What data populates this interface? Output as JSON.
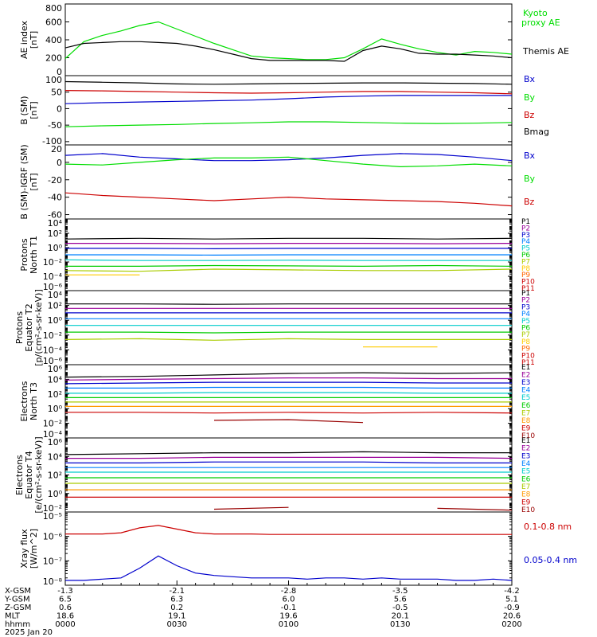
{
  "chart_data": [
    {
      "type": "line",
      "ylabel_lines": [
        "AE index",
        "[nT]"
      ],
      "ylim": [
        0,
        800
      ],
      "yticks": [
        0,
        200,
        400,
        600,
        800
      ],
      "ytick_labels": [
        "0",
        "200",
        "400",
        "600",
        "800"
      ],
      "x": [
        0,
        5,
        10,
        15,
        20,
        25,
        30,
        35,
        40,
        45,
        50,
        55,
        60,
        65,
        70,
        75,
        80,
        85,
        90,
        95,
        100,
        105,
        110,
        115,
        120
      ],
      "series": [
        {
          "name": "Kyoto proxy AE",
          "color": "#00dd00",
          "values": [
            190,
            380,
            450,
            500,
            560,
            600,
            520,
            440,
            360,
            290,
            220,
            200,
            190,
            180,
            180,
            200,
            300,
            410,
            350,
            300,
            260,
            230,
            270,
            260,
            240
          ]
        },
        {
          "name": "Themis AE",
          "color": "#000000",
          "values": [
            310,
            360,
            370,
            380,
            380,
            370,
            360,
            330,
            290,
            240,
            190,
            170,
            170,
            170,
            170,
            160,
            280,
            330,
            300,
            250,
            240,
            240,
            230,
            220,
            200
          ]
        }
      ]
    },
    {
      "type": "line",
      "ylabel_lines": [
        "B (SM)",
        "[nT]"
      ],
      "ylim": [
        -110,
        100
      ],
      "yticks": [
        -100,
        -50,
        0,
        50,
        100
      ],
      "ytick_labels": [
        "-100",
        "-50",
        "0",
        "50",
        "100"
      ],
      "x": [
        0,
        10,
        20,
        30,
        40,
        50,
        60,
        70,
        80,
        90,
        100,
        110,
        120
      ],
      "series": [
        {
          "name": "Bx",
          "color": "#0000cc",
          "values": [
            15,
            18,
            20,
            22,
            24,
            26,
            30,
            35,
            38,
            40,
            40,
            40,
            40
          ]
        },
        {
          "name": "By",
          "color": "#00dd00",
          "values": [
            -55,
            -52,
            -50,
            -48,
            -45,
            -43,
            -40,
            -40,
            -42,
            -44,
            -45,
            -44,
            -42
          ]
        },
        {
          "name": "Bz",
          "color": "#cc0000",
          "values": [
            55,
            54,
            52,
            50,
            48,
            47,
            48,
            50,
            52,
            52,
            50,
            48,
            45
          ]
        },
        {
          "name": "Bmag",
          "color": "#000000",
          "values": [
            82,
            80,
            78,
            75,
            74,
            75,
            76,
            77,
            78,
            78,
            77,
            76,
            74
          ]
        }
      ]
    },
    {
      "type": "line",
      "ylabel_lines": [
        "B (SM)-IGRF (SM)",
        "[nT]"
      ],
      "ylim": [
        -65,
        20
      ],
      "yticks": [
        -60,
        -40,
        -20,
        0,
        20
      ],
      "ytick_labels": [
        "-60",
        "-40",
        "-20",
        "0",
        "20"
      ],
      "x": [
        0,
        10,
        20,
        30,
        40,
        50,
        60,
        70,
        80,
        90,
        100,
        110,
        120
      ],
      "series": [
        {
          "name": "Bx",
          "color": "#0000cc",
          "values": [
            8,
            10,
            6,
            4,
            2,
            2,
            3,
            5,
            8,
            10,
            9,
            6,
            2
          ]
        },
        {
          "name": "By",
          "color": "#00dd00",
          "values": [
            -2,
            -3,
            0,
            3,
            5,
            5,
            6,
            2,
            -2,
            -5,
            -4,
            -2,
            -4
          ]
        },
        {
          "name": "Bz",
          "color": "#cc0000",
          "values": [
            -35,
            -38,
            -40,
            -42,
            -44,
            -42,
            -40,
            -42,
            -43,
            -44,
            -45,
            -47,
            -50
          ]
        }
      ]
    },
    {
      "type": "line",
      "ylabel_lines": [
        "Protons",
        "North T1"
      ],
      "log": true,
      "ylim_exp": [
        -6,
        4
      ],
      "yticks_exp": [
        -6,
        -4,
        -2,
        0,
        2,
        4
      ],
      "series": [
        {
          "name": "P1",
          "color": "#000000",
          "log_values": [
            1.2,
            1.3,
            1.2,
            1.3,
            1.3,
            1.2,
            1.3
          ]
        },
        {
          "name": "P2",
          "color": "#990099",
          "log_values": [
            0.6,
            0.6,
            0.55,
            0.6,
            0.6,
            0.55,
            0.6
          ]
        },
        {
          "name": "P3",
          "color": "#0000cc",
          "log_values": [
            -0.1,
            -0.1,
            -0.15,
            -0.1,
            -0.1,
            -0.1,
            -0.1
          ]
        },
        {
          "name": "P4",
          "color": "#0080ff",
          "log_values": [
            -1.0,
            -1.0,
            -1.05,
            -1.0,
            -1.0,
            -1.0,
            -1.0
          ]
        },
        {
          "name": "P5",
          "color": "#00cccc",
          "log_values": [
            -1.7,
            -1.8,
            -1.8,
            -1.75,
            -1.8,
            -1.8,
            -1.8
          ]
        },
        {
          "name": "P6",
          "color": "#00cc00",
          "log_values": [
            -2.6,
            -2.6,
            -2.5,
            -2.55,
            -2.6,
            -2.5,
            -2.6
          ]
        },
        {
          "name": "P7",
          "color": "#aacc00",
          "log_values": [
            -3.2,
            -3.3,
            -3.0,
            -3.1,
            -3.2,
            -3.2,
            -3.0
          ]
        },
        {
          "name": "P8",
          "color": "#ffcc00",
          "log_values": [
            -3.8,
            -3.8,
            null,
            -3.8,
            null,
            null,
            -3.6
          ]
        }
      ],
      "legend_extra": [
        {
          "name": "P9",
          "color": "#ff6600"
        },
        {
          "name": "P10",
          "color": "#cc0000"
        },
        {
          "name": "P11",
          "color": "#cc0000"
        }
      ]
    },
    {
      "type": "line",
      "ylabel_lines": [
        "Protons",
        "Equator T2",
        "[p/(cm²-s-sr-keV)]"
      ],
      "log": true,
      "ylim_exp": [
        -6,
        4
      ],
      "yticks_exp": [
        -6,
        -4,
        -2,
        0,
        2,
        4
      ],
      "series": [
        {
          "name": "P1",
          "color": "#000000",
          "log_values": [
            2.2,
            2.2,
            2.15,
            2.2,
            2.2,
            2.2,
            2.2
          ]
        },
        {
          "name": "P2",
          "color": "#990099",
          "log_values": [
            1.6,
            1.6,
            1.6,
            1.6,
            1.6,
            1.6,
            1.6
          ]
        },
        {
          "name": "P3",
          "color": "#0000cc",
          "log_values": [
            1.0,
            1.0,
            1.0,
            1.0,
            1.0,
            1.0,
            1.0
          ]
        },
        {
          "name": "P4",
          "color": "#0080ff",
          "log_values": [
            0.2,
            0.2,
            0.2,
            0.2,
            0.2,
            0.2,
            0.2
          ]
        },
        {
          "name": "P5",
          "color": "#00cccc",
          "log_values": [
            -0.7,
            -0.7,
            -0.7,
            -0.7,
            -0.7,
            -0.7,
            -0.7
          ]
        },
        {
          "name": "P6",
          "color": "#00cc00",
          "log_values": [
            -1.6,
            -1.6,
            -1.7,
            -1.6,
            -1.6,
            -1.6,
            -1.6
          ]
        },
        {
          "name": "P7",
          "color": "#aacc00",
          "log_values": [
            -2.6,
            -2.5,
            -2.7,
            -2.5,
            -2.6,
            -2.6,
            -2.6
          ]
        },
        {
          "name": "P8",
          "color": "#ffcc00",
          "log_values": [
            -3.5,
            null,
            -3.6,
            null,
            -3.6,
            -3.6,
            null
          ]
        }
      ],
      "legend_extra": [
        {
          "name": "P9",
          "color": "#ff6600"
        },
        {
          "name": "P10",
          "color": "#cc0000"
        },
        {
          "name": "P11",
          "color": "#cc0000"
        }
      ]
    },
    {
      "type": "line",
      "ylabel_lines": [
        "Electrons",
        "North T3"
      ],
      "log": true,
      "ylim_exp": [
        -4,
        6
      ],
      "yticks_exp": [
        -4,
        -2,
        0,
        2,
        4,
        6
      ],
      "series": [
        {
          "name": "E1",
          "color": "#000000",
          "log_values": [
            4.3,
            4.4,
            4.6,
            4.8,
            4.9,
            4.8,
            4.9
          ]
        },
        {
          "name": "E2",
          "color": "#990099",
          "log_values": [
            3.9,
            4.0,
            4.1,
            4.2,
            4.2,
            4.1,
            4.1
          ]
        },
        {
          "name": "E3",
          "color": "#0000cc",
          "log_values": [
            3.4,
            3.5,
            3.6,
            3.6,
            3.6,
            3.5,
            3.5
          ]
        },
        {
          "name": "E4",
          "color": "#0080ff",
          "log_values": [
            2.8,
            2.8,
            2.9,
            2.9,
            2.9,
            2.8,
            2.8
          ]
        },
        {
          "name": "E5",
          "color": "#00cccc",
          "log_values": [
            2.1,
            2.1,
            2.2,
            2.2,
            2.2,
            2.1,
            2.1
          ]
        },
        {
          "name": "E6",
          "color": "#00cc00",
          "log_values": [
            1.5,
            1.5,
            1.5,
            1.5,
            1.5,
            1.5,
            1.5
          ]
        },
        {
          "name": "E7",
          "color": "#aacc00",
          "log_values": [
            0.9,
            0.9,
            0.9,
            0.9,
            0.9,
            0.9,
            0.9
          ]
        },
        {
          "name": "E8",
          "color": "#ff9900",
          "log_values": [
            0.3,
            0.3,
            0.3,
            0.3,
            0.3,
            0.3,
            0.3
          ]
        },
        {
          "name": "E9",
          "color": "#cc0000",
          "log_values": [
            -0.5,
            -0.5,
            -0.6,
            -0.5,
            -0.6,
            -0.5,
            -0.6
          ]
        },
        {
          "name": "E10",
          "color": "#990000",
          "log_values": [
            -1.5,
            null,
            -1.6,
            -1.5,
            -1.9,
            null,
            -1.8
          ]
        }
      ]
    },
    {
      "type": "line",
      "ylabel_lines": [
        "Electrons",
        "Equator T4",
        "[e/(cm²-s-sr-keV)]"
      ],
      "log": true,
      "ylim_exp": [
        -2,
        6
      ],
      "yticks_exp": [
        -2,
        0,
        2,
        4,
        6
      ],
      "series": [
        {
          "name": "E1",
          "color": "#000000",
          "log_values": [
            4.2,
            4.3,
            4.4,
            4.4,
            4.5,
            4.4,
            4.4
          ]
        },
        {
          "name": "E2",
          "color": "#990099",
          "log_values": [
            3.8,
            3.8,
            3.9,
            3.9,
            3.9,
            3.9,
            3.8
          ]
        },
        {
          "name": "E3",
          "color": "#0000cc",
          "log_values": [
            3.3,
            3.3,
            3.4,
            3.4,
            3.4,
            3.3,
            3.3
          ]
        },
        {
          "name": "E4",
          "color": "#0080ff",
          "log_values": [
            2.8,
            2.8,
            2.8,
            2.8,
            2.8,
            2.8,
            2.8
          ]
        },
        {
          "name": "E5",
          "color": "#00cccc",
          "log_values": [
            2.3,
            2.3,
            2.3,
            2.3,
            2.3,
            2.3,
            2.3
          ]
        },
        {
          "name": "E6",
          "color": "#00cc00",
          "log_values": [
            1.7,
            1.7,
            1.7,
            1.7,
            1.7,
            1.7,
            1.7
          ]
        },
        {
          "name": "E7",
          "color": "#aacc00",
          "log_values": [
            1.1,
            1.1,
            1.1,
            1.1,
            1.1,
            1.1,
            1.1
          ]
        },
        {
          "name": "E8",
          "color": "#ff9900",
          "log_values": [
            0.4,
            0.4,
            0.4,
            0.4,
            0.4,
            0.4,
            0.4
          ]
        },
        {
          "name": "E9",
          "color": "#cc0000",
          "log_values": [
            -0.4,
            -0.4,
            -0.4,
            -0.4,
            -0.4,
            -0.4,
            -0.4
          ]
        },
        {
          "name": "E10",
          "color": "#990000",
          "log_values": [
            -1.8,
            null,
            -1.7,
            -1.5,
            null,
            -1.6,
            -1.8
          ]
        }
      ]
    },
    {
      "type": "line",
      "ylabel_lines": [
        "Xray flux",
        "[W/m^2]"
      ],
      "log": true,
      "ylim_exp": [
        -8,
        -5
      ],
      "yticks_exp": [
        -8,
        -7,
        -6,
        -5
      ],
      "x": [
        0,
        5,
        10,
        15,
        20,
        25,
        30,
        35,
        40,
        45,
        50,
        55,
        60,
        65,
        70,
        75,
        80,
        85,
        90,
        95,
        100,
        105,
        110,
        115,
        120
      ],
      "series": [
        {
          "name": "0.1-0.8 nm",
          "color": "#cc0000",
          "log_values": [
            -5.9,
            -5.9,
            -5.9,
            -5.85,
            -5.65,
            -5.55,
            -5.7,
            -5.85,
            -5.9,
            -5.9,
            -5.9,
            -5.92,
            -5.92,
            -5.92,
            -5.92,
            -5.92,
            -5.92,
            -5.92,
            -5.92,
            -5.92,
            -5.92,
            -5.92,
            -5.92,
            -5.92,
            -5.92
          ]
        },
        {
          "name": "0.05-0.4 nm",
          "color": "#0000cc",
          "log_values": [
            -7.8,
            -7.8,
            -7.75,
            -7.7,
            -7.3,
            -6.8,
            -7.2,
            -7.5,
            -7.6,
            -7.65,
            -7.7,
            -7.7,
            -7.7,
            -7.75,
            -7.7,
            -7.7,
            -7.75,
            -7.7,
            -7.75,
            -7.75,
            -7.75,
            -7.8,
            -7.8,
            -7.75,
            -7.8
          ]
        }
      ]
    }
  ],
  "x_axis": {
    "row_labels": [
      "X-GSM",
      "Y-GSM",
      "Z-GSM",
      "MLT",
      "hhmm"
    ],
    "date_label": "2025 Jan 20",
    "columns": [
      [
        "-1.3",
        "6.5",
        "0.6",
        "18.6",
        "0000"
      ],
      [
        "-2.1",
        "6.3",
        "0.2",
        "19.1",
        "0030"
      ],
      [
        "-2.8",
        "6.0",
        "-0.1",
        "19.6",
        "0100"
      ],
      [
        "-3.5",
        "5.6",
        "-0.5",
        "20.1",
        "0130"
      ],
      [
        "-4.2",
        "5.1",
        "-0.9",
        "20.6",
        "0200"
      ]
    ]
  }
}
